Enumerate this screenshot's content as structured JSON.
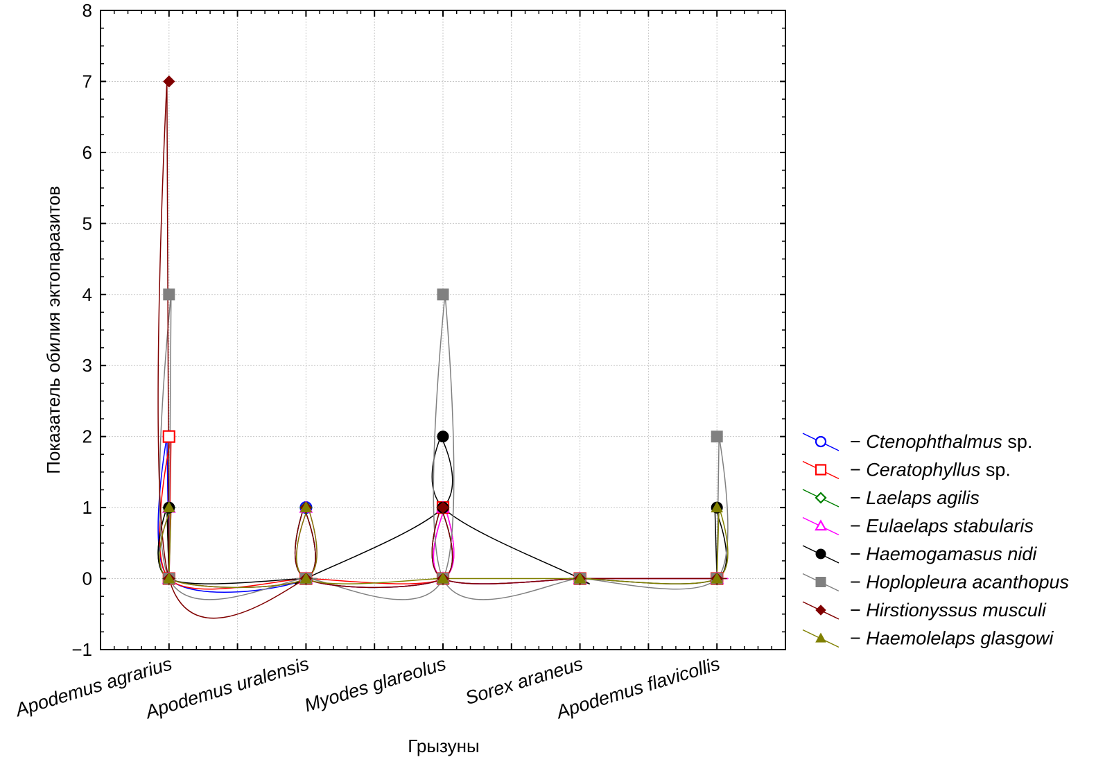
{
  "chart_data": {
    "type": "line",
    "title": "",
    "xlabel": "Грызуны",
    "ylabel": "Показатель обилия эктопаразитов",
    "categories": [
      "Apodemus agrarius",
      "Apodemus uralensis",
      "Myodes glareolus",
      "Sorex araneus",
      "Apodemus flavicollis"
    ],
    "ylim": [
      -1,
      8
    ],
    "yticks": [
      "−1",
      "0",
      "1",
      "2",
      "3",
      "4",
      "5",
      "6",
      "7",
      "8"
    ],
    "ytick_values": [
      -1,
      0,
      1,
      2,
      3,
      4,
      5,
      6,
      7,
      8
    ],
    "grid": true,
    "legend_position": "right",
    "series": [
      {
        "name": "Ctenophthalmus",
        "suffix": " sp.",
        "color": "#0000ff",
        "marker": "circle-open",
        "values": [
          2,
          1,
          1,
          0,
          0
        ],
        "baseline": [
          0,
          0,
          0,
          0,
          0
        ]
      },
      {
        "name": "Ceratophyllus",
        "suffix": " sp.",
        "color": "#ff0000",
        "marker": "square-open",
        "values": [
          2,
          0,
          1,
          0,
          0
        ],
        "baseline": [
          0,
          0,
          0,
          0,
          0
        ]
      },
      {
        "name": "Laelaps agilis",
        "suffix": "",
        "color": "#008000",
        "marker": "diamond-open",
        "values": [
          1,
          1,
          1,
          0,
          0
        ],
        "baseline": [
          0,
          0,
          0,
          0,
          0
        ]
      },
      {
        "name": "Eulaelaps stabularis",
        "suffix": "",
        "color": "#ff00ff",
        "marker": "triangle-open",
        "values": [
          1,
          1,
          1,
          0,
          0
        ],
        "baseline": [
          0,
          0,
          0,
          0,
          0
        ]
      },
      {
        "name": "Haemogamasus nidi",
        "suffix": "",
        "color": "#000000",
        "marker": "circle-filled",
        "values": [
          1,
          0,
          2,
          0,
          1
        ],
        "baseline": [
          0,
          0,
          1,
          0,
          0
        ]
      },
      {
        "name": "Hoplopleura acanthopus",
        "suffix": "",
        "color": "#808080",
        "marker": "square-filled",
        "values": [
          4,
          0,
          4,
          0,
          2
        ],
        "baseline": [
          0,
          0,
          0,
          0,
          0
        ]
      },
      {
        "name": "Hirstionyssus musculi",
        "suffix": "",
        "color": "#800000",
        "marker": "diamond-filled",
        "values": [
          7,
          1,
          1,
          0,
          0
        ],
        "baseline": [
          0,
          0,
          0,
          0,
          0
        ]
      },
      {
        "name": "Haemolelaps glasgowi",
        "suffix": "",
        "color": "#808000",
        "marker": "triangle-filled",
        "values": [
          1,
          1,
          0,
          0,
          1
        ],
        "baseline": [
          0,
          0,
          0,
          0,
          0
        ]
      }
    ]
  }
}
